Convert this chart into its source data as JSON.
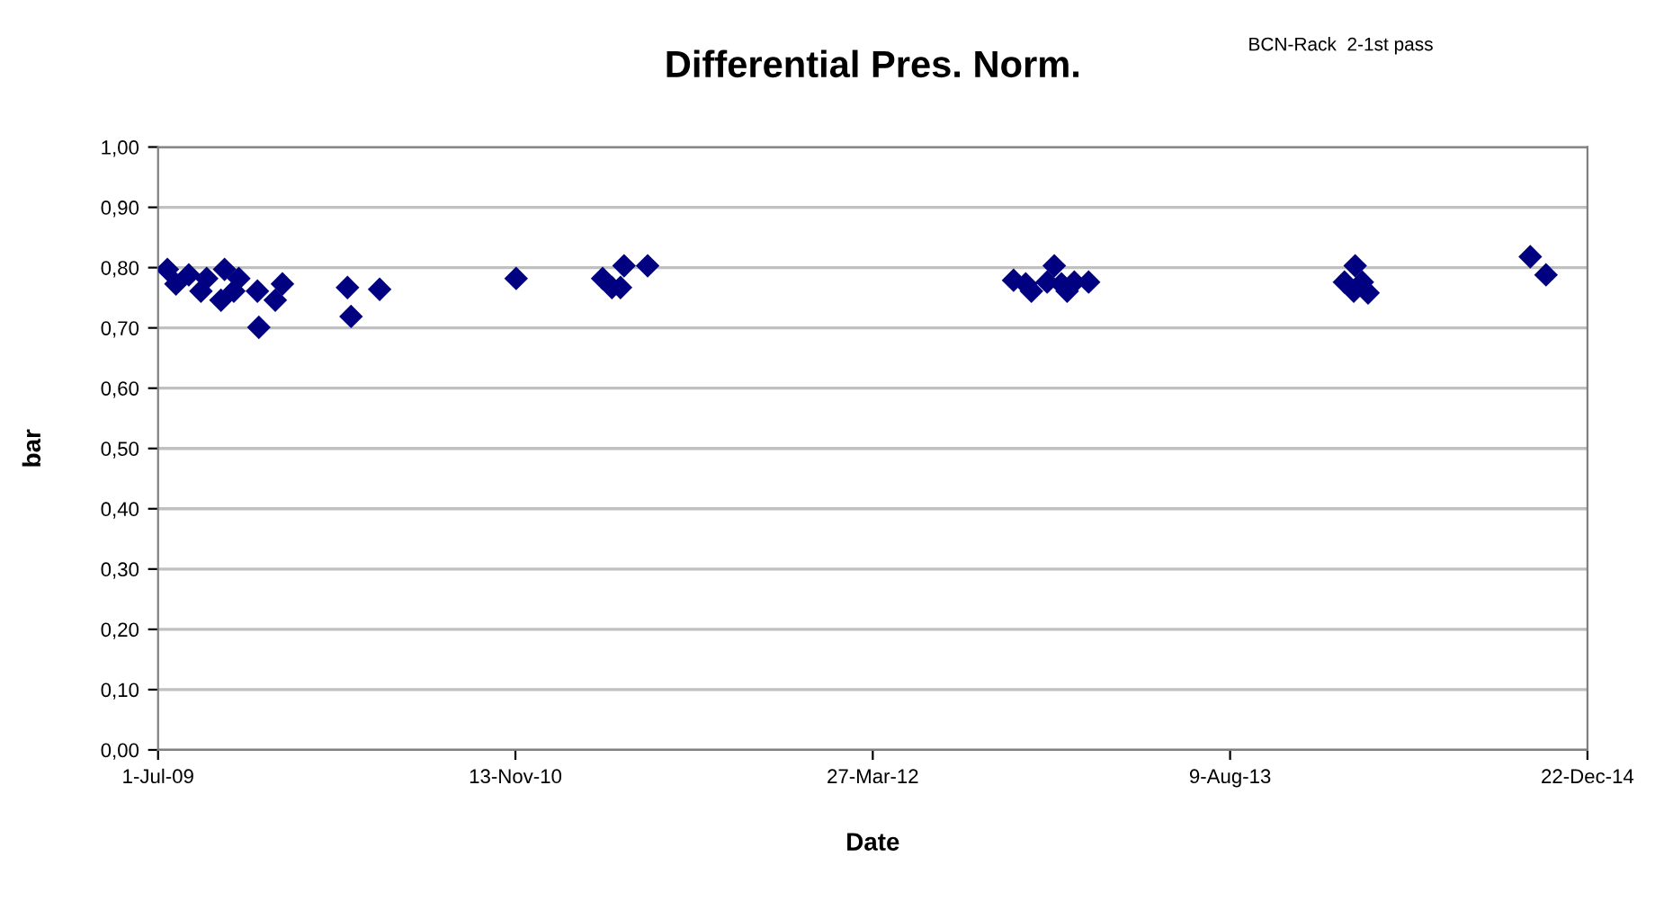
{
  "chart_data": {
    "type": "scatter",
    "title": "Differential Pres. Norm.",
    "xlabel": "Date",
    "ylabel": "bar",
    "annotations": [
      "BCN-Rack  2-1st pass"
    ],
    "x": [
      "2009-07-14",
      "2009-07-26",
      "2009-08-13",
      "2009-08-30",
      "2009-09-07",
      "2009-10-02",
      "2009-09-27",
      "2009-10-15",
      "2009-10-22",
      "2009-11-17",
      "2009-11-19",
      "2009-12-22",
      "2009-12-12",
      "2010-03-23",
      "2010-03-28",
      "2010-05-07",
      "2010-11-14",
      "2011-03-15",
      "2011-03-28",
      "2011-04-14",
      "2011-04-09",
      "2011-05-17",
      "2012-10-10",
      "2012-10-27",
      "2012-11-26",
      "2012-12-06",
      "2012-12-16",
      "2013-01-03",
      "2013-01-23",
      "2012-11-04",
      "2012-12-24",
      "2014-01-16",
      "2014-01-31",
      "2014-02-10",
      "2014-01-29",
      "2014-02-18",
      "2014-10-03",
      "2014-10-25"
    ],
    "series": [
      {
        "color": "#000080",
        "values": [
          0.797,
          0.773,
          0.788,
          0.761,
          0.782,
          0.797,
          0.746,
          0.761,
          0.782,
          0.761,
          0.701,
          0.773,
          0.746,
          0.767,
          0.719,
          0.764,
          0.782,
          0.782,
          0.767,
          0.803,
          0.767,
          0.803,
          0.779,
          0.773,
          0.776,
          0.803,
          0.773,
          0.776,
          0.776,
          0.761,
          0.761,
          0.776,
          0.803,
          0.776,
          0.761,
          0.758,
          0.818,
          0.788
        ]
      }
    ],
    "marker": "diamond",
    "grid": "y",
    "legend": false,
    "xlim": [
      "2009-07-01",
      "2014-12-22"
    ],
    "xticks": [
      {
        "value": "2009-07-01",
        "label": "1-Jul-09"
      },
      {
        "value": "2010-11-13",
        "label": "13-Nov-10"
      },
      {
        "value": "2012-03-27",
        "label": "27-Mar-12"
      },
      {
        "value": "2013-08-09",
        "label": "9-Aug-13"
      },
      {
        "value": "2014-12-22",
        "label": "22-Dec-14"
      }
    ],
    "ylim": [
      0,
      1
    ],
    "yticks": [
      {
        "value": 0,
        "label": "0,00"
      },
      {
        "value": 0.1,
        "label": "0,10"
      },
      {
        "value": 0.2,
        "label": "0,20"
      },
      {
        "value": 0.3,
        "label": "0,30"
      },
      {
        "value": 0.4,
        "label": "0,40"
      },
      {
        "value": 0.5,
        "label": "0,50"
      },
      {
        "value": 0.6,
        "label": "0,60"
      },
      {
        "value": 0.7,
        "label": "0,70"
      },
      {
        "value": 0.8,
        "label": "0,80"
      },
      {
        "value": 0.9,
        "label": "0,90"
      },
      {
        "value": 1,
        "label": "1,00"
      }
    ]
  }
}
